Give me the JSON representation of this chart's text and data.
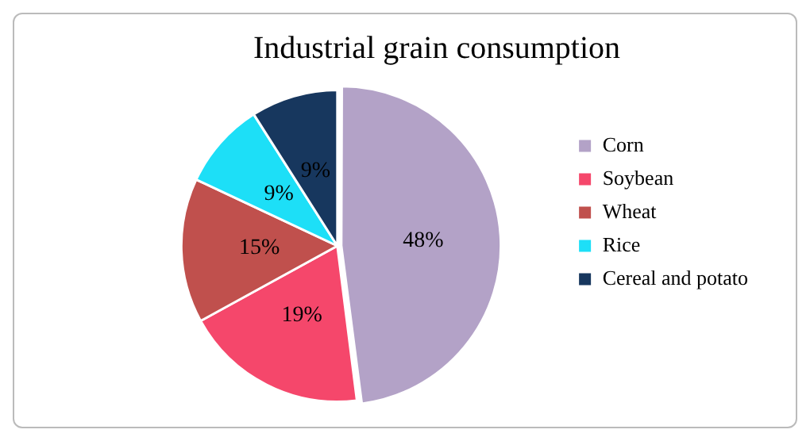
{
  "chart_data": {
    "type": "pie",
    "title": "Industrial grain consumption",
    "categories": [
      "Corn",
      "Soybean",
      "Wheat",
      "Rice",
      "Cereal and potato"
    ],
    "values": [
      48,
      19,
      15,
      9,
      9
    ],
    "colors": [
      "#b3a2c7",
      "#f5476b",
      "#c0504d",
      "#1ddff7",
      "#17375e"
    ],
    "value_labels": [
      "48%",
      "19%",
      "15%",
      "9%",
      "9%"
    ],
    "legend": "right"
  }
}
